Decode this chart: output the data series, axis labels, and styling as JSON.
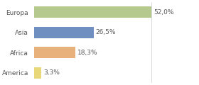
{
  "categories": [
    "Europa",
    "Asia",
    "Africa",
    "America"
  ],
  "values": [
    52.0,
    26.5,
    18.3,
    3.3
  ],
  "labels": [
    "52,0%",
    "26,5%",
    "18,3%",
    "3,3%"
  ],
  "colors": [
    "#b5c98e",
    "#6e8fbf",
    "#e8b07a",
    "#e8d87a"
  ],
  "background_color": "#ffffff",
  "xlim": [
    0,
    72
  ],
  "bar_height": 0.55,
  "figsize": [
    2.8,
    1.2
  ],
  "dpi": 100,
  "label_fontsize": 6.5,
  "category_fontsize": 6.5
}
